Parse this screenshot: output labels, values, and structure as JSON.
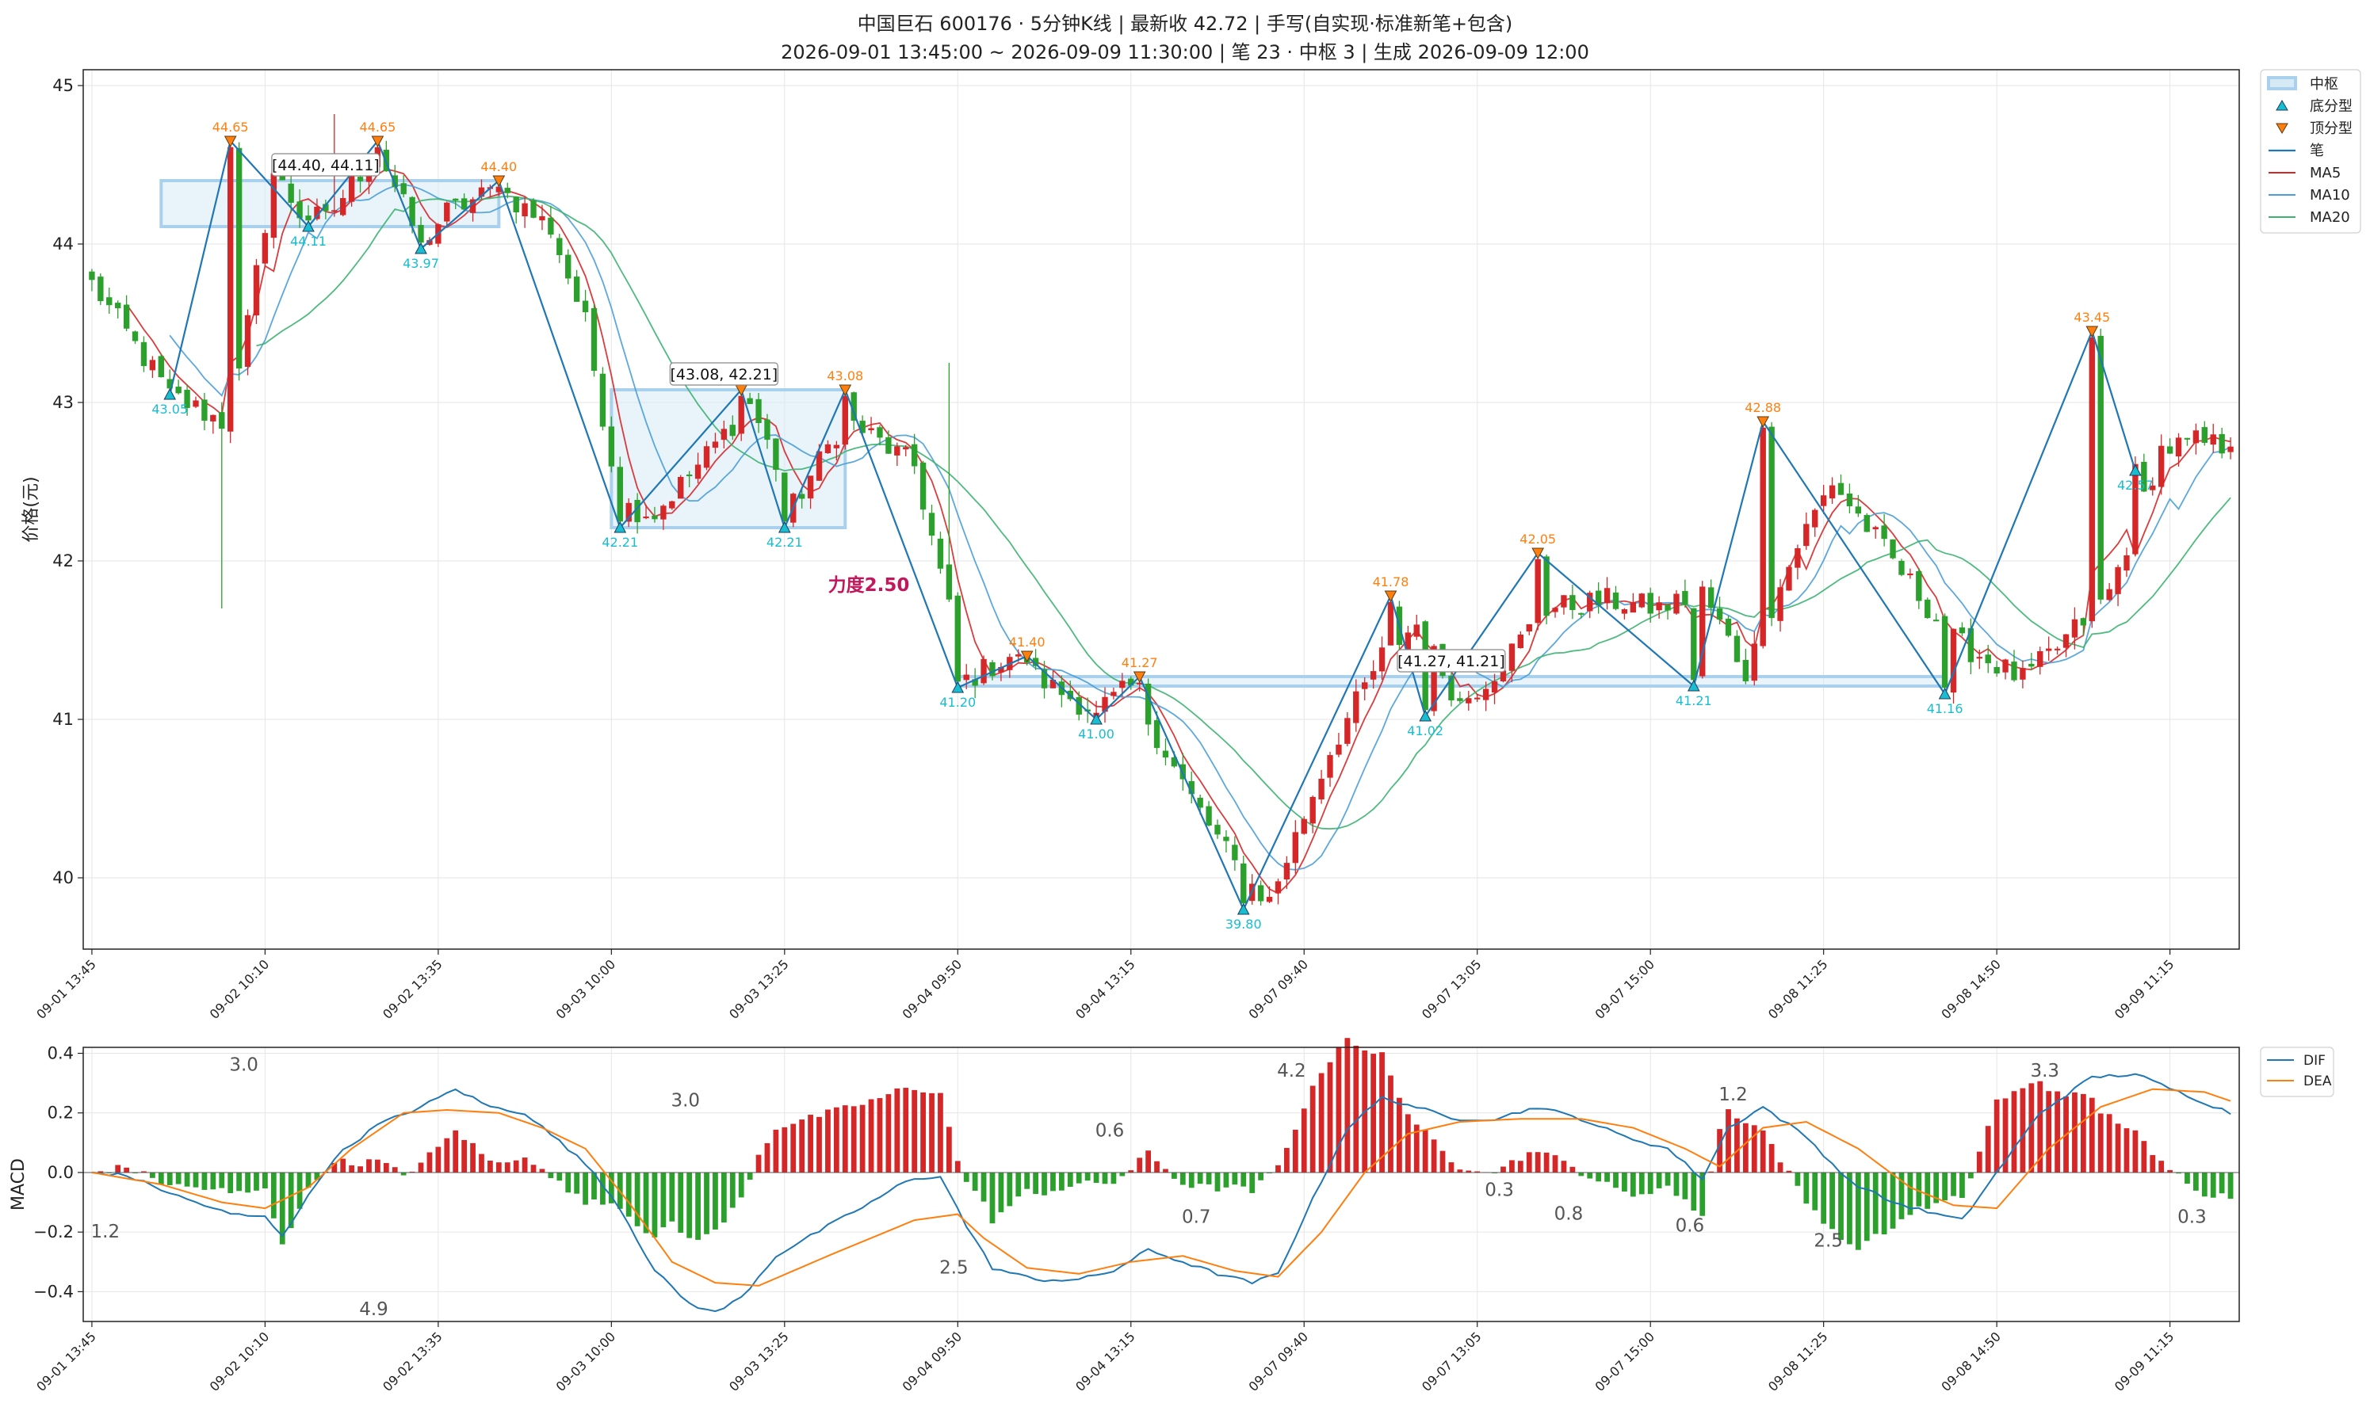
{
  "title": {
    "line1": "中国巨石 600176 · 5分钟K线 | 最新收 42.72 | 手写(自实现·标准新笔+包含)",
    "line2": "2026-09-01 13:45:00 ~ 2026-09-09 11:30:00 | 笔 23 · 中枢 3 | 生成 2026-09-09 12:00"
  },
  "colors": {
    "up": "#d62728",
    "down": "#2ca02c",
    "bi": "#1f77b4",
    "ma5": "#d62728",
    "ma10": "#4a9fd8",
    "ma20": "#3cb371",
    "zs_fill": "#d6eaf5",
    "zs_edge": "#a9d0ec",
    "fx_bottom": "#17becf",
    "fx_top": "#ff7f0e",
    "dif": "#1f77b4",
    "dea": "#ff7f0e",
    "force": "#c2185b",
    "grid": "#e6e6e6"
  },
  "chart_data": [
    {
      "type": "candlestick",
      "ylabel": "价格(元)",
      "ylim": [
        39.55,
        45.1
      ],
      "yticks": [
        "40",
        "41",
        "42",
        "43",
        "44",
        "45"
      ],
      "grid": true,
      "x_count": 248,
      "xtick_positions": [
        0,
        20,
        40,
        60,
        80,
        100,
        120,
        140,
        160,
        180,
        200,
        220,
        240
      ],
      "xticks": [
        "09-01 13:45",
        "09-02 10:10",
        "09-02 13:35",
        "09-03 10:00",
        "09-03 13:25",
        "09-04 09:50",
        "09-04 13:15",
        "09-07 09:40",
        "09-07 13:05",
        "09-07 15:00",
        "09-08 11:25",
        "09-08 14:50",
        "09-09 11:15"
      ],
      "anchors": [
        [
          0,
          43.75
        ],
        [
          9,
          43.05
        ],
        [
          16,
          42.85
        ],
        [
          21,
          44.45
        ],
        [
          24,
          44.2
        ],
        [
          27,
          44.15
        ],
        [
          33,
          44.6
        ],
        [
          38,
          44.0
        ],
        [
          41,
          44.2
        ],
        [
          47,
          44.35
        ],
        [
          53,
          44.1
        ],
        [
          57,
          43.5
        ],
        [
          61,
          42.35
        ],
        [
          65,
          42.3
        ],
        [
          70,
          42.6
        ],
        [
          76,
          43.0
        ],
        [
          81,
          42.35
        ],
        [
          87,
          42.9
        ],
        [
          91,
          42.75
        ],
        [
          95,
          42.6
        ],
        [
          101,
          41.25
        ],
        [
          106,
          41.4
        ],
        [
          111,
          41.2
        ],
        [
          116,
          41.05
        ],
        [
          120,
          41.2
        ],
        [
          127,
          40.5
        ],
        [
          133,
          40.0
        ],
        [
          136,
          39.85
        ],
        [
          143,
          40.8
        ],
        [
          149,
          41.4
        ],
        [
          153,
          41.6
        ],
        [
          158,
          41.1
        ],
        [
          162,
          41.3
        ],
        [
          168,
          41.7
        ],
        [
          175,
          41.75
        ],
        [
          181,
          41.7
        ],
        [
          186,
          41.8
        ],
        [
          191,
          41.3
        ],
        [
          197,
          42.1
        ],
        [
          201,
          42.5
        ],
        [
          208,
          42.0
        ],
        [
          215,
          41.5
        ],
        [
          223,
          41.25
        ],
        [
          227,
          41.45
        ],
        [
          233,
          41.8
        ],
        [
          239,
          42.7
        ],
        [
          243,
          42.75
        ],
        [
          247,
          42.72
        ]
      ],
      "ma_lines": [
        {
          "name": "MA5",
          "period": 5
        },
        {
          "name": "MA10",
          "period": 10
        },
        {
          "name": "MA20",
          "period": 20
        }
      ],
      "bi_points": [
        {
          "i": 9,
          "p": 43.05,
          "t": "b"
        },
        {
          "i": 16,
          "p": 44.65,
          "t": "t"
        },
        {
          "i": 25,
          "p": 44.11,
          "t": "b"
        },
        {
          "i": 33,
          "p": 44.65,
          "t": "t"
        },
        {
          "i": 38,
          "p": 43.97,
          "t": "b"
        },
        {
          "i": 47,
          "p": 44.4,
          "t": "t"
        },
        {
          "i": 61,
          "p": 42.21,
          "t": "b"
        },
        {
          "i": 75,
          "p": 43.08,
          "t": "t"
        },
        {
          "i": 80,
          "p": 42.21,
          "t": "b"
        },
        {
          "i": 87,
          "p": 43.08,
          "t": "t"
        },
        {
          "i": 100,
          "p": 41.2,
          "t": "b"
        },
        {
          "i": 108,
          "p": 41.4,
          "t": "t"
        },
        {
          "i": 116,
          "p": 41.0,
          "t": "b"
        },
        {
          "i": 121,
          "p": 41.27,
          "t": "t"
        },
        {
          "i": 133,
          "p": 39.8,
          "t": "b"
        },
        {
          "i": 150,
          "p": 41.78,
          "t": "t"
        },
        {
          "i": 154,
          "p": 41.02,
          "t": "b"
        },
        {
          "i": 167,
          "p": 42.05,
          "t": "t"
        },
        {
          "i": 185,
          "p": 41.21,
          "t": "b"
        },
        {
          "i": 193,
          "p": 42.88,
          "t": "t"
        },
        {
          "i": 214,
          "p": 41.16,
          "t": "b"
        },
        {
          "i": 231,
          "p": 43.45,
          "t": "t"
        },
        {
          "i": 236,
          "p": 42.57,
          "t": "b"
        }
      ],
      "zhongshu": [
        {
          "x0": 8,
          "x1": 47,
          "high": 44.4,
          "low": 44.11,
          "label": "[44.40, 44.11]",
          "label_i": 27
        },
        {
          "x0": 60,
          "x1": 87,
          "high": 43.08,
          "low": 42.21,
          "label": "[43.08, 42.21]",
          "label_i": 73
        },
        {
          "x0": 100,
          "x1": 214,
          "high": 41.27,
          "low": 41.21,
          "label": "[41.27, 41.21]",
          "label_i": 157
        }
      ],
      "annotations": [
        {
          "text": "力度2.50",
          "i": 91,
          "p": 41.85
        }
      ],
      "legend": {
        "position": "upper-right-outside",
        "items": [
          {
            "label": "中枢",
            "kind": "zs"
          },
          {
            "label": "底分型",
            "kind": "fx_bottom"
          },
          {
            "label": "顶分型",
            "kind": "fx_top"
          },
          {
            "label": "笔",
            "kind": "bi"
          },
          {
            "label": "MA5",
            "kind": "ma5"
          },
          {
            "label": "MA10",
            "kind": "ma10"
          },
          {
            "label": "MA20",
            "kind": "ma20"
          }
        ]
      }
    },
    {
      "type": "macd",
      "ylabel": "MACD",
      "ylim": [
        -0.5,
        0.42
      ],
      "yticks": [
        "−0.4",
        "−0.2",
        "0.0",
        "0.2",
        "0.4"
      ],
      "ytick_values": [
        -0.4,
        -0.2,
        0.0,
        0.2,
        0.4
      ],
      "grid": true,
      "dif_anchors": [
        [
          0,
          0.0
        ],
        [
          4,
          -0.01
        ],
        [
          10,
          -0.08
        ],
        [
          16,
          -0.14
        ],
        [
          20,
          -0.15
        ],
        [
          22,
          -0.21
        ],
        [
          25,
          -0.08
        ],
        [
          28,
          0.05
        ],
        [
          33,
          0.16
        ],
        [
          38,
          0.22
        ],
        [
          42,
          0.28
        ],
        [
          46,
          0.22
        ],
        [
          50,
          0.2
        ],
        [
          55,
          0.08
        ],
        [
          58,
          0.0
        ],
        [
          61,
          -0.12
        ],
        [
          65,
          -0.33
        ],
        [
          69,
          -0.44
        ],
        [
          72,
          -0.47
        ],
        [
          75,
          -0.42
        ],
        [
          79,
          -0.28
        ],
        [
          85,
          -0.18
        ],
        [
          90,
          -0.1
        ],
        [
          94,
          -0.03
        ],
        [
          98,
          -0.01
        ],
        [
          101,
          -0.18
        ],
        [
          104,
          -0.32
        ],
        [
          109,
          -0.36
        ],
        [
          114,
          -0.36
        ],
        [
          118,
          -0.33
        ],
        [
          122,
          -0.26
        ],
        [
          126,
          -0.3
        ],
        [
          130,
          -0.34
        ],
        [
          134,
          -0.37
        ],
        [
          137,
          -0.34
        ],
        [
          140,
          -0.15
        ],
        [
          145,
          0.15
        ],
        [
          149,
          0.25
        ],
        [
          153,
          0.22
        ],
        [
          157,
          0.18
        ],
        [
          162,
          0.18
        ],
        [
          167,
          0.22
        ],
        [
          172,
          0.18
        ],
        [
          177,
          0.12
        ],
        [
          182,
          0.08
        ],
        [
          186,
          -0.02
        ],
        [
          189,
          0.15
        ],
        [
          193,
          0.22
        ],
        [
          198,
          0.12
        ],
        [
          203,
          -0.03
        ],
        [
          208,
          -0.1
        ],
        [
          213,
          -0.14
        ],
        [
          216,
          -0.16
        ],
        [
          220,
          0.0
        ],
        [
          225,
          0.2
        ],
        [
          231,
          0.32
        ],
        [
          236,
          0.33
        ],
        [
          241,
          0.27
        ],
        [
          247,
          0.2
        ]
      ],
      "dea_anchors": [
        [
          0,
          0.0
        ],
        [
          8,
          -0.04
        ],
        [
          15,
          -0.1
        ],
        [
          20,
          -0.12
        ],
        [
          25,
          -0.05
        ],
        [
          30,
          0.08
        ],
        [
          36,
          0.2
        ],
        [
          41,
          0.21
        ],
        [
          47,
          0.2
        ],
        [
          52,
          0.15
        ],
        [
          57,
          0.08
        ],
        [
          62,
          -0.1
        ],
        [
          67,
          -0.3
        ],
        [
          72,
          -0.37
        ],
        [
          77,
          -0.38
        ],
        [
          85,
          -0.28
        ],
        [
          90,
          -0.22
        ],
        [
          95,
          -0.16
        ],
        [
          100,
          -0.14
        ],
        [
          103,
          -0.22
        ],
        [
          108,
          -0.32
        ],
        [
          114,
          -0.34
        ],
        [
          120,
          -0.3
        ],
        [
          126,
          -0.28
        ],
        [
          132,
          -0.33
        ],
        [
          137,
          -0.35
        ],
        [
          142,
          -0.2
        ],
        [
          147,
          0.0
        ],
        [
          152,
          0.13
        ],
        [
          158,
          0.17
        ],
        [
          165,
          0.18
        ],
        [
          172,
          0.18
        ],
        [
          178,
          0.15
        ],
        [
          184,
          0.08
        ],
        [
          188,
          0.02
        ],
        [
          193,
          0.15
        ],
        [
          198,
          0.17
        ],
        [
          204,
          0.08
        ],
        [
          210,
          -0.05
        ],
        [
          215,
          -0.11
        ],
        [
          220,
          -0.12
        ],
        [
          226,
          0.08
        ],
        [
          232,
          0.22
        ],
        [
          238,
          0.28
        ],
        [
          244,
          0.27
        ],
        [
          247,
          0.24
        ]
      ],
      "labels": [
        {
          "text": "1.2",
          "i": 1,
          "v": -0.2
        },
        {
          "text": "3.0",
          "i": 17,
          "v": 0.36
        },
        {
          "text": "4.9",
          "i": 32,
          "v": -0.46
        },
        {
          "text": "3.0",
          "i": 68,
          "v": 0.24
        },
        {
          "text": "2.5",
          "i": 99,
          "v": -0.32
        },
        {
          "text": "0.6",
          "i": 117,
          "v": 0.14
        },
        {
          "text": "0.7",
          "i": 127,
          "v": -0.15
        },
        {
          "text": "4.2",
          "i": 138,
          "v": 0.34
        },
        {
          "text": "0.3",
          "i": 162,
          "v": -0.06
        },
        {
          "text": "0.8",
          "i": 170,
          "v": -0.14
        },
        {
          "text": "0.6",
          "i": 184,
          "v": -0.18
        },
        {
          "text": "1.2",
          "i": 189,
          "v": 0.26
        },
        {
          "text": "2.5",
          "i": 200,
          "v": -0.23
        },
        {
          "text": "3.3",
          "i": 225,
          "v": 0.34
        },
        {
          "text": "0.3",
          "i": 242,
          "v": -0.15
        }
      ],
      "legend": [
        {
          "label": "DIF",
          "kind": "dif"
        },
        {
          "label": "DEA",
          "kind": "dea"
        }
      ]
    }
  ]
}
